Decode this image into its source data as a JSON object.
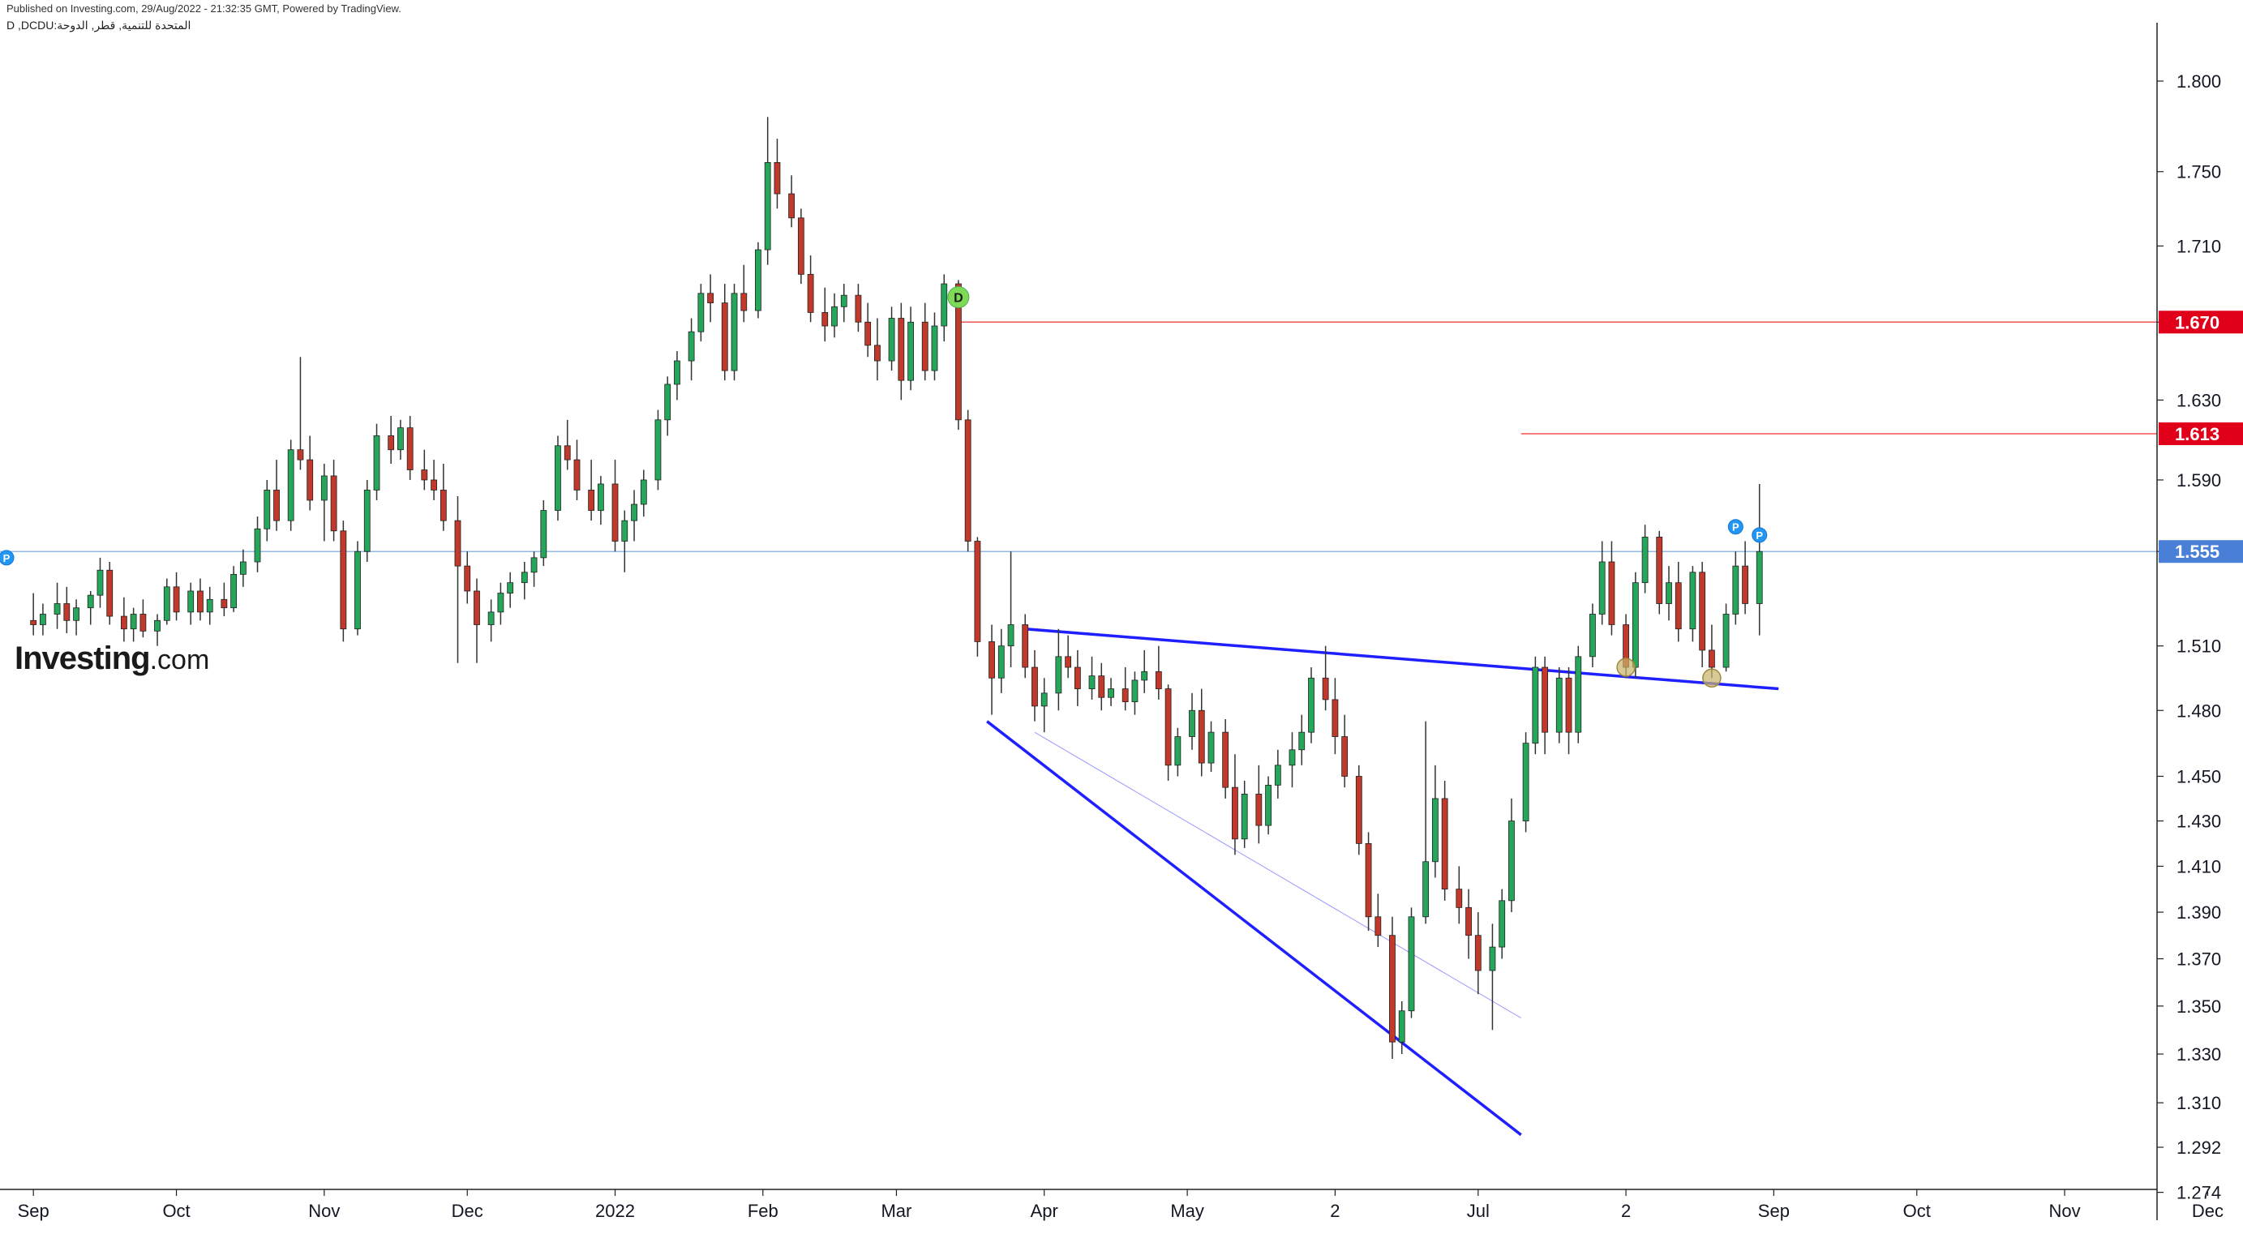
{
  "header": {
    "published": "Published on Investing.com, 29/Aug/2022 - 21:32:35 GMT, Powered by TradingView.",
    "symbol": "D ,DCDU:المتحدة للتنمية, قطر, الدوحة"
  },
  "branding": {
    "logo_main": "Investing",
    "logo_suffix": ".com"
  },
  "colors": {
    "up": "#26a65b",
    "down": "#c0392b",
    "wick": "#333333",
    "resistance": "#ef5350",
    "trend": "#1f1fff",
    "current": "#90b8e8",
    "price_tag_red": "#e0001a",
    "price_tag_blue": "#4a7fd8"
  },
  "chart_data": {
    "type": "candlestick",
    "x_ticks": [
      "Sep",
      "Oct",
      "Nov",
      "Dec",
      "2022",
      "Feb",
      "Mar",
      "Apr",
      "May",
      "2",
      "Jul",
      "2",
      "Sep",
      "Oct",
      "Nov",
      "Dec"
    ],
    "y_ticks": [
      "1.800",
      "1.750",
      "1.710",
      "1.670",
      "1.630",
      "1.590",
      "1.555",
      "1.510",
      "1.480",
      "1.450",
      "1.430",
      "1.410",
      "1.390",
      "1.370",
      "1.350",
      "1.330",
      "1.310",
      "1.292",
      "1.274"
    ],
    "y_log_scale": true,
    "ylim": [
      1.274,
      1.82
    ],
    "price_tags": [
      {
        "label": "1.670",
        "value": 1.67,
        "color": "red"
      },
      {
        "label": "1.613",
        "value": 1.613,
        "color": "red"
      },
      {
        "label": "1.555",
        "value": 1.555,
        "color": "blue"
      }
    ],
    "markers": [
      {
        "label": "D",
        "value": 1.683,
        "style": "green-circle"
      },
      {
        "label": "P",
        "value": 1.552,
        "style": "blue-circle"
      },
      {
        "label": "P",
        "value": 1.567,
        "style": "blue-circle"
      },
      {
        "label": "P",
        "value": 1.563,
        "style": "blue-circle"
      }
    ],
    "support_touches": [
      1.5,
      1.495
    ],
    "ohlc": [
      [
        "2021-09-01",
        1.522,
        1.535,
        1.515,
        1.52
      ],
      [
        "2021-09-03",
        1.52,
        1.53,
        1.515,
        1.525
      ],
      [
        "2021-09-06",
        1.525,
        1.54,
        1.518,
        1.53
      ],
      [
        "2021-09-08",
        1.53,
        1.538,
        1.516,
        1.522
      ],
      [
        "2021-09-10",
        1.522,
        1.532,
        1.515,
        1.528
      ],
      [
        "2021-09-13",
        1.528,
        1.536,
        1.52,
        1.534
      ],
      [
        "2021-09-15",
        1.534,
        1.552,
        1.528,
        1.546
      ],
      [
        "2021-09-17",
        1.546,
        1.55,
        1.52,
        1.524
      ],
      [
        "2021-09-20",
        1.524,
        1.533,
        1.512,
        1.518
      ],
      [
        "2021-09-22",
        1.518,
        1.528,
        1.512,
        1.525
      ],
      [
        "2021-09-24",
        1.525,
        1.532,
        1.514,
        1.517
      ],
      [
        "2021-09-27",
        1.517,
        1.525,
        1.51,
        1.522
      ],
      [
        "2021-09-29",
        1.522,
        1.542,
        1.52,
        1.538
      ],
      [
        "2021-10-01",
        1.538,
        1.545,
        1.522,
        1.526
      ],
      [
        "2021-10-04",
        1.526,
        1.54,
        1.52,
        1.536
      ],
      [
        "2021-10-06",
        1.536,
        1.542,
        1.522,
        1.526
      ],
      [
        "2021-10-08",
        1.526,
        1.538,
        1.52,
        1.532
      ],
      [
        "2021-10-11",
        1.532,
        1.54,
        1.524,
        1.528
      ],
      [
        "2021-10-13",
        1.528,
        1.548,
        1.526,
        1.544
      ],
      [
        "2021-10-15",
        1.544,
        1.556,
        1.538,
        1.55
      ],
      [
        "2021-10-18",
        1.55,
        1.572,
        1.545,
        1.566
      ],
      [
        "2021-10-20",
        1.566,
        1.59,
        1.56,
        1.585
      ],
      [
        "2021-10-22",
        1.585,
        1.6,
        1.565,
        1.57
      ],
      [
        "2021-10-25",
        1.57,
        1.61,
        1.565,
        1.605
      ],
      [
        "2021-10-27",
        1.605,
        1.652,
        1.595,
        1.6
      ],
      [
        "2021-10-29",
        1.6,
        1.612,
        1.575,
        1.58
      ],
      [
        "2021-11-01",
        1.58,
        1.598,
        1.56,
        1.592
      ],
      [
        "2021-11-03",
        1.592,
        1.6,
        1.56,
        1.565
      ],
      [
        "2021-11-05",
        1.565,
        1.57,
        1.512,
        1.518
      ],
      [
        "2021-11-08",
        1.518,
        1.56,
        1.515,
        1.555
      ],
      [
        "2021-11-10",
        1.555,
        1.59,
        1.55,
        1.585
      ],
      [
        "2021-11-12",
        1.585,
        1.618,
        1.58,
        1.612
      ],
      [
        "2021-11-15",
        1.612,
        1.622,
        1.598,
        1.605
      ],
      [
        "2021-11-17",
        1.605,
        1.62,
        1.6,
        1.616
      ],
      [
        "2021-11-19",
        1.616,
        1.622,
        1.59,
        1.595
      ],
      [
        "2021-11-22",
        1.595,
        1.605,
        1.585,
        1.59
      ],
      [
        "2021-11-24",
        1.59,
        1.6,
        1.58,
        1.585
      ],
      [
        "2021-11-26",
        1.585,
        1.598,
        1.565,
        1.57
      ],
      [
        "2021-11-29",
        1.57,
        1.582,
        1.502,
        1.548
      ],
      [
        "2021-12-01",
        1.548,
        1.555,
        1.53,
        1.536
      ],
      [
        "2021-12-03",
        1.536,
        1.542,
        1.502,
        1.52
      ],
      [
        "2021-12-06",
        1.52,
        1.532,
        1.512,
        1.526
      ],
      [
        "2021-12-08",
        1.526,
        1.54,
        1.52,
        1.535
      ],
      [
        "2021-12-10",
        1.535,
        1.545,
        1.528,
        1.54
      ],
      [
        "2021-12-13",
        1.54,
        1.55,
        1.532,
        1.545
      ],
      [
        "2021-12-15",
        1.545,
        1.555,
        1.538,
        1.552
      ],
      [
        "2021-12-17",
        1.552,
        1.58,
        1.548,
        1.575
      ],
      [
        "2021-12-20",
        1.575,
        1.612,
        1.57,
        1.607
      ],
      [
        "2021-12-22",
        1.607,
        1.62,
        1.595,
        1.6
      ],
      [
        "2021-12-24",
        1.6,
        1.61,
        1.58,
        1.585
      ],
      [
        "2021-12-27",
        1.585,
        1.6,
        1.57,
        1.575
      ],
      [
        "2021-12-29",
        1.575,
        1.592,
        1.568,
        1.588
      ],
      [
        "2022-01-01",
        1.588,
        1.6,
        1.555,
        1.56
      ],
      [
        "2022-01-03",
        1.56,
        1.575,
        1.545,
        1.57
      ],
      [
        "2022-01-05",
        1.57,
        1.585,
        1.56,
        1.578
      ],
      [
        "2022-01-07",
        1.578,
        1.595,
        1.572,
        1.59
      ],
      [
        "2022-01-10",
        1.59,
        1.625,
        1.585,
        1.62
      ],
      [
        "2022-01-12",
        1.62,
        1.642,
        1.612,
        1.638
      ],
      [
        "2022-01-14",
        1.638,
        1.655,
        1.63,
        1.65
      ],
      [
        "2022-01-17",
        1.65,
        1.672,
        1.64,
        1.665
      ],
      [
        "2022-01-19",
        1.665,
        1.69,
        1.66,
        1.685
      ],
      [
        "2022-01-21",
        1.685,
        1.695,
        1.67,
        1.68
      ],
      [
        "2022-01-24",
        1.68,
        1.69,
        1.64,
        1.645
      ],
      [
        "2022-01-26",
        1.645,
        1.69,
        1.64,
        1.685
      ],
      [
        "2022-01-28",
        1.685,
        1.7,
        1.67,
        1.676
      ],
      [
        "2022-01-31",
        1.676,
        1.712,
        1.672,
        1.708
      ],
      [
        "2022-02-02",
        1.708,
        1.78,
        1.7,
        1.755
      ],
      [
        "2022-02-04",
        1.755,
        1.768,
        1.73,
        1.738
      ],
      [
        "2022-02-07",
        1.738,
        1.748,
        1.72,
        1.725
      ],
      [
        "2022-02-09",
        1.725,
        1.73,
        1.69,
        1.695
      ],
      [
        "2022-02-11",
        1.695,
        1.705,
        1.67,
        1.675
      ],
      [
        "2022-02-14",
        1.675,
        1.688,
        1.66,
        1.668
      ],
      [
        "2022-02-16",
        1.668,
        1.685,
        1.662,
        1.678
      ],
      [
        "2022-02-18",
        1.678,
        1.69,
        1.67,
        1.684
      ],
      [
        "2022-02-21",
        1.684,
        1.69,
        1.665,
        1.67
      ],
      [
        "2022-02-23",
        1.67,
        1.68,
        1.652,
        1.658
      ],
      [
        "2022-02-25",
        1.658,
        1.672,
        1.64,
        1.65
      ],
      [
        "2022-02-28",
        1.65,
        1.678,
        1.645,
        1.672
      ],
      [
        "2022-03-02",
        1.672,
        1.68,
        1.63,
        1.64
      ],
      [
        "2022-03-04",
        1.64,
        1.678,
        1.635,
        1.67
      ],
      [
        "2022-03-07",
        1.67,
        1.68,
        1.64,
        1.645
      ],
      [
        "2022-03-09",
        1.645,
        1.675,
        1.64,
        1.668
      ],
      [
        "2022-03-11",
        1.668,
        1.695,
        1.66,
        1.69
      ],
      [
        "2022-03-14",
        1.69,
        1.692,
        1.615,
        1.62
      ],
      [
        "2022-03-16",
        1.62,
        1.625,
        1.555,
        1.56
      ],
      [
        "2022-03-18",
        1.56,
        1.562,
        1.505,
        1.512
      ],
      [
        "2022-03-21",
        1.512,
        1.52,
        1.478,
        1.495
      ],
      [
        "2022-03-23",
        1.495,
        1.518,
        1.488,
        1.51
      ],
      [
        "2022-03-25",
        1.51,
        1.555,
        1.5,
        1.52
      ],
      [
        "2022-03-28",
        1.52,
        1.525,
        1.495,
        1.5
      ],
      [
        "2022-03-30",
        1.5,
        1.508,
        1.475,
        1.482
      ],
      [
        "2022-04-01",
        1.482,
        1.495,
        1.47,
        1.488
      ],
      [
        "2022-04-04",
        1.488,
        1.518,
        1.48,
        1.505
      ],
      [
        "2022-04-06",
        1.505,
        1.515,
        1.495,
        1.5
      ],
      [
        "2022-04-08",
        1.5,
        1.508,
        1.482,
        1.49
      ],
      [
        "2022-04-11",
        1.49,
        1.505,
        1.485,
        1.496
      ],
      [
        "2022-04-13",
        1.496,
        1.502,
        1.48,
        1.486
      ],
      [
        "2022-04-15",
        1.486,
        1.495,
        1.482,
        1.49
      ],
      [
        "2022-04-18",
        1.49,
        1.5,
        1.48,
        1.484
      ],
      [
        "2022-04-20",
        1.484,
        1.498,
        1.478,
        1.494
      ],
      [
        "2022-04-22",
        1.494,
        1.508,
        1.488,
        1.498
      ],
      [
        "2022-04-25",
        1.498,
        1.51,
        1.485,
        1.49
      ],
      [
        "2022-04-27",
        1.49,
        1.492,
        1.448,
        1.455
      ],
      [
        "2022-04-29",
        1.455,
        1.472,
        1.45,
        1.468
      ],
      [
        "2022-05-02",
        1.468,
        1.488,
        1.462,
        1.48
      ],
      [
        "2022-05-04",
        1.48,
        1.49,
        1.45,
        1.456
      ],
      [
        "2022-05-06",
        1.456,
        1.475,
        1.452,
        1.47
      ],
      [
        "2022-05-09",
        1.47,
        1.476,
        1.44,
        1.445
      ],
      [
        "2022-05-11",
        1.445,
        1.46,
        1.415,
        1.422
      ],
      [
        "2022-05-13",
        1.422,
        1.448,
        1.418,
        1.442
      ],
      [
        "2022-05-16",
        1.442,
        1.455,
        1.42,
        1.428
      ],
      [
        "2022-05-18",
        1.428,
        1.45,
        1.424,
        1.446
      ],
      [
        "2022-05-20",
        1.446,
        1.462,
        1.44,
        1.455
      ],
      [
        "2022-05-23",
        1.455,
        1.47,
        1.445,
        1.462
      ],
      [
        "2022-05-25",
        1.462,
        1.478,
        1.455,
        1.47
      ],
      [
        "2022-05-27",
        1.47,
        1.5,
        1.465,
        1.495
      ],
      [
        "2022-05-30",
        1.495,
        1.51,
        1.48,
        1.485
      ],
      [
        "2022-06-01",
        1.485,
        1.495,
        1.46,
        1.468
      ],
      [
        "2022-06-03",
        1.468,
        1.478,
        1.445,
        1.45
      ],
      [
        "2022-06-06",
        1.45,
        1.455,
        1.415,
        1.42
      ],
      [
        "2022-06-08",
        1.42,
        1.425,
        1.382,
        1.388
      ],
      [
        "2022-06-10",
        1.388,
        1.398,
        1.375,
        1.38
      ],
      [
        "2022-06-13",
        1.38,
        1.388,
        1.328,
        1.335
      ],
      [
        "2022-06-15",
        1.335,
        1.352,
        1.33,
        1.348
      ],
      [
        "2022-06-17",
        1.348,
        1.392,
        1.345,
        1.388
      ],
      [
        "2022-06-20",
        1.388,
        1.475,
        1.385,
        1.412
      ],
      [
        "2022-06-22",
        1.412,
        1.455,
        1.405,
        1.44
      ],
      [
        "2022-06-24",
        1.44,
        1.448,
        1.395,
        1.4
      ],
      [
        "2022-06-27",
        1.4,
        1.41,
        1.385,
        1.392
      ],
      [
        "2022-06-29",
        1.392,
        1.4,
        1.37,
        1.38
      ],
      [
        "2022-07-01",
        1.38,
        1.39,
        1.355,
        1.365
      ],
      [
        "2022-07-04",
        1.365,
        1.385,
        1.34,
        1.375
      ],
      [
        "2022-07-06",
        1.375,
        1.4,
        1.37,
        1.395
      ],
      [
        "2022-07-08",
        1.395,
        1.44,
        1.39,
        1.43
      ],
      [
        "2022-07-11",
        1.43,
        1.47,
        1.425,
        1.465
      ],
      [
        "2022-07-13",
        1.465,
        1.505,
        1.46,
        1.5
      ],
      [
        "2022-07-15",
        1.5,
        1.505,
        1.46,
        1.47
      ],
      [
        "2022-07-18",
        1.47,
        1.5,
        1.465,
        1.495
      ],
      [
        "2022-07-20",
        1.495,
        1.5,
        1.46,
        1.47
      ],
      [
        "2022-07-22",
        1.47,
        1.51,
        1.465,
        1.505
      ],
      [
        "2022-07-25",
        1.505,
        1.53,
        1.5,
        1.525
      ],
      [
        "2022-07-27",
        1.525,
        1.56,
        1.52,
        1.55
      ],
      [
        "2022-07-29",
        1.55,
        1.56,
        1.515,
        1.52
      ],
      [
        "2022-08-01",
        1.52,
        1.525,
        1.495,
        1.5
      ],
      [
        "2022-08-03",
        1.5,
        1.545,
        1.495,
        1.54
      ],
      [
        "2022-08-05",
        1.54,
        1.568,
        1.535,
        1.562
      ],
      [
        "2022-08-08",
        1.562,
        1.565,
        1.525,
        1.53
      ],
      [
        "2022-08-10",
        1.53,
        1.548,
        1.522,
        1.54
      ],
      [
        "2022-08-12",
        1.54,
        1.55,
        1.512,
        1.518
      ],
      [
        "2022-08-15",
        1.518,
        1.548,
        1.512,
        1.545
      ],
      [
        "2022-08-17",
        1.545,
        1.55,
        1.5,
        1.508
      ],
      [
        "2022-08-19",
        1.508,
        1.52,
        1.495,
        1.5
      ],
      [
        "2022-08-22",
        1.5,
        1.53,
        1.498,
        1.525
      ],
      [
        "2022-08-24",
        1.525,
        1.555,
        1.52,
        1.548
      ],
      [
        "2022-08-26",
        1.548,
        1.56,
        1.525,
        1.53
      ],
      [
        "2022-08-29",
        1.53,
        1.588,
        1.515,
        1.555
      ]
    ],
    "lines": [
      {
        "kind": "resistance",
        "from": [
          "2022-03-14",
          1.67
        ],
        "to": [
          "2023-01-15",
          1.67
        ]
      },
      {
        "kind": "resistance",
        "from": [
          "2022-07-10",
          1.613
        ],
        "to": [
          "2023-01-15",
          1.613
        ]
      },
      {
        "kind": "current",
        "from": [
          "2021-08-25",
          1.555
        ],
        "to": [
          "2023-01-15",
          1.555
        ]
      },
      {
        "kind": "trend",
        "from": [
          "2022-03-28",
          1.518
        ],
        "to": [
          "2022-09-02",
          1.49
        ]
      },
      {
        "kind": "trend",
        "from": [
          "2022-03-20",
          1.475
        ],
        "to": [
          "2022-07-10",
          1.297
        ]
      },
      {
        "kind": "trend-thin",
        "from": [
          "2022-03-30",
          1.47
        ],
        "to": [
          "2022-07-10",
          1.345
        ]
      }
    ]
  }
}
